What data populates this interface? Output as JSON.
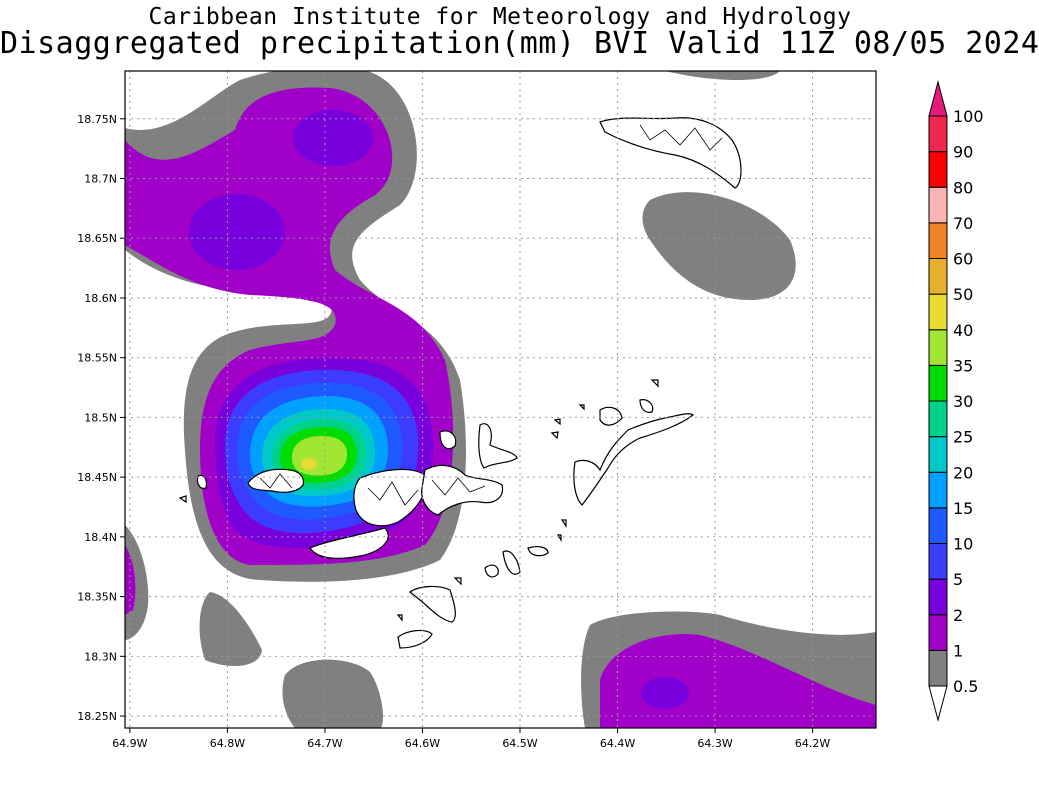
{
  "title": {
    "line1": "Caribbean Institute for Meteorology and Hydrology",
    "line2": "Disaggregated precipitation(mm) BVI Valid 11Z 08/05 2024"
  },
  "map": {
    "lon_range": [
      -64.905,
      -64.135
    ],
    "lat_range": [
      18.24,
      18.79
    ],
    "x_ticks": [
      {
        "lon": -64.9,
        "label": "64.9W"
      },
      {
        "lon": -64.8,
        "label": "64.8W"
      },
      {
        "lon": -64.7,
        "label": "64.7W"
      },
      {
        "lon": -64.6,
        "label": "64.6W"
      },
      {
        "lon": -64.5,
        "label": "64.5W"
      },
      {
        "lon": -64.4,
        "label": "64.4W"
      },
      {
        "lon": -64.3,
        "label": "64.3W"
      },
      {
        "lon": -64.2,
        "label": "64.2W"
      }
    ],
    "y_ticks": [
      {
        "lat": 18.75,
        "label": "18.75N"
      },
      {
        "lat": 18.7,
        "label": "18.7N"
      },
      {
        "lat": 18.65,
        "label": "18.65N"
      },
      {
        "lat": 18.6,
        "label": "18.6N"
      },
      {
        "lat": 18.55,
        "label": "18.55N"
      },
      {
        "lat": 18.5,
        "label": "18.5N"
      },
      {
        "lat": 18.45,
        "label": "18.45N"
      },
      {
        "lat": 18.4,
        "label": "18.4N"
      },
      {
        "lat": 18.35,
        "label": "18.35N"
      },
      {
        "lat": 18.3,
        "label": "18.3N"
      },
      {
        "lat": 18.25,
        "label": "18.25N"
      }
    ],
    "grid": true
  },
  "colorbar": {
    "levels": [
      {
        "label": "0.5",
        "color": "#ffffff"
      },
      {
        "label": "1",
        "color": "#808080"
      },
      {
        "label": "2",
        "color": "#a000c8"
      },
      {
        "label": "5",
        "color": "#7800dc"
      },
      {
        "label": "10",
        "color": "#3c3cff"
      },
      {
        "label": "15",
        "color": "#1e5aff"
      },
      {
        "label": "20",
        "color": "#00a0ff"
      },
      {
        "label": "25",
        "color": "#00c8c8"
      },
      {
        "label": "30",
        "color": "#00d28c"
      },
      {
        "label": "35",
        "color": "#00dc00"
      },
      {
        "label": "40",
        "color": "#a0e632"
      },
      {
        "label": "50",
        "color": "#e6dc32"
      },
      {
        "label": "60",
        "color": "#e6af2d"
      },
      {
        "label": "70",
        "color": "#f08228"
      },
      {
        "label": "80",
        "color": "#fab4b4"
      },
      {
        "label": "90",
        "color": "#fa0000"
      },
      {
        "label": "100",
        "color": "#f02850"
      }
    ],
    "over_color": "#e6197d"
  }
}
